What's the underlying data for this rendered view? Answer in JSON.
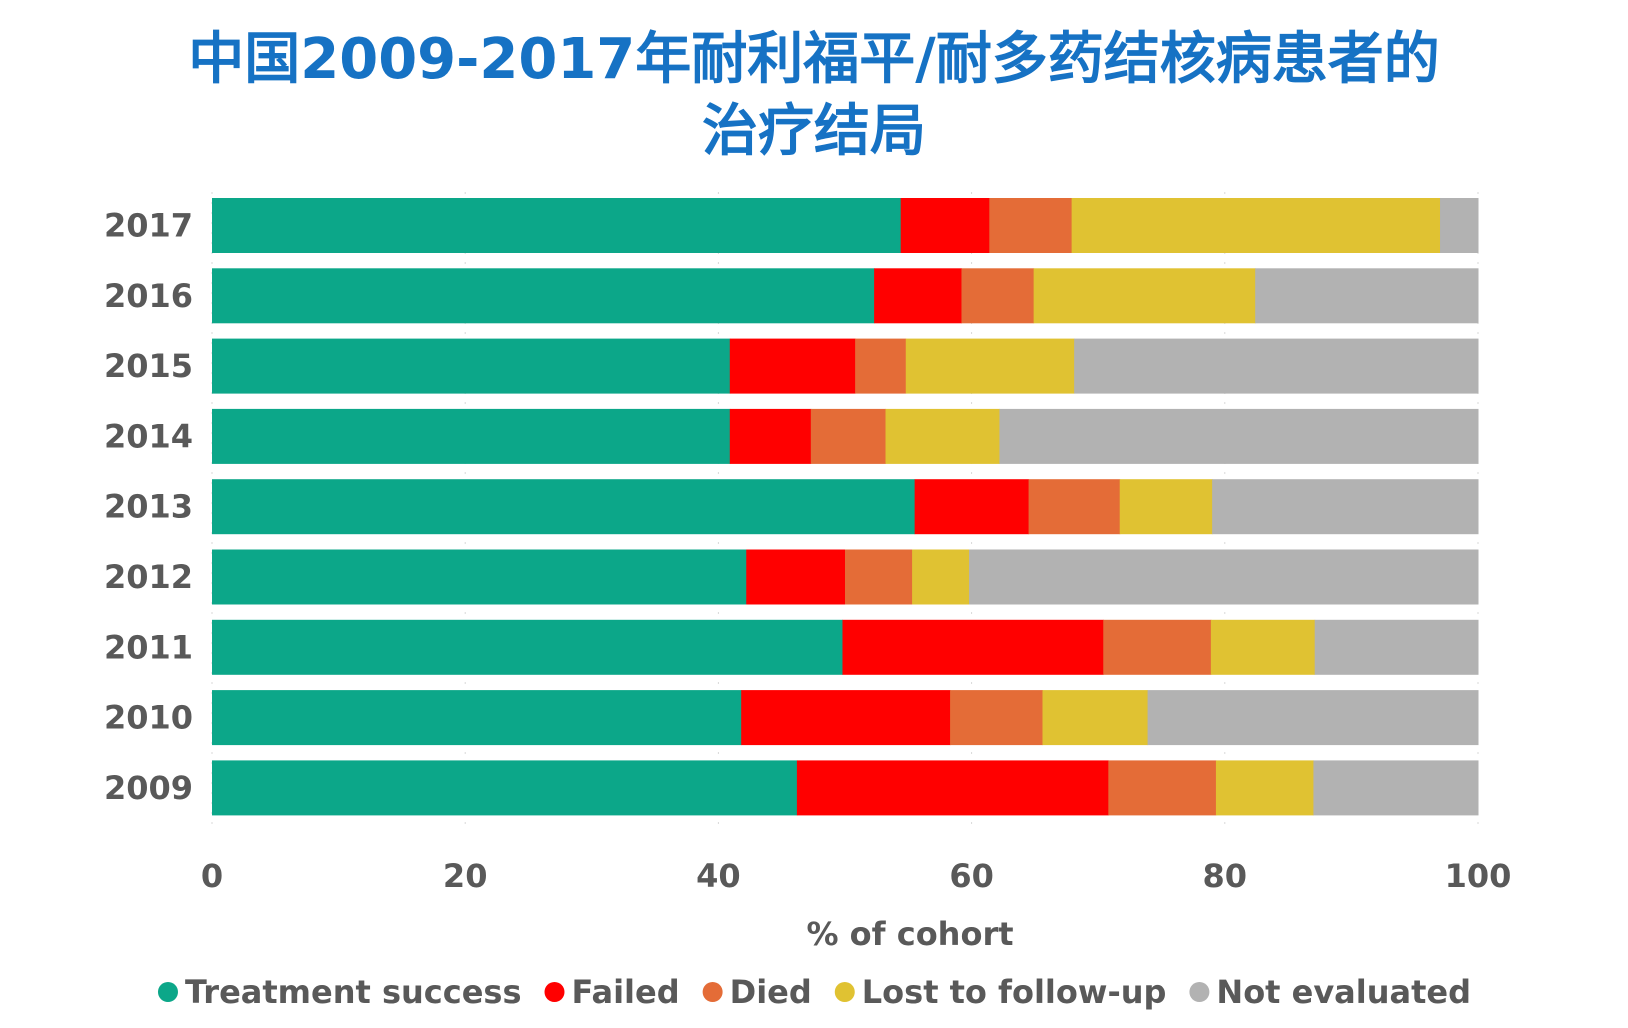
{
  "chart_data": {
    "type": "bar",
    "orientation": "horizontal",
    "stacked": true,
    "title_lines": [
      "中国2009-2017年耐利福平/耐多药结核病患者的",
      "治疗结局"
    ],
    "xlabel": "% of cohort",
    "ylabel": "",
    "xlim": [
      0,
      100
    ],
    "xticks": [
      "0",
      "20",
      "40",
      "60",
      "80",
      "100"
    ],
    "grid": "vertical dotted",
    "legend_position": "bottom",
    "categories": [
      "2017",
      "2016",
      "2015",
      "2014",
      "2013",
      "2012",
      "2011",
      "2010",
      "2009"
    ],
    "series": [
      {
        "name": "Treatment success",
        "color": "#0ca789",
        "values": [
          54.4,
          52.3,
          40.9,
          40.9,
          55.5,
          42.2,
          49.8,
          41.8,
          46.2
        ]
      },
      {
        "name": "Failed",
        "color": "#ff0000",
        "values": [
          7.0,
          6.9,
          9.9,
          6.4,
          9.0,
          7.8,
          20.6,
          16.5,
          24.6
        ]
      },
      {
        "name": "Died",
        "color": "#e46c37",
        "values": [
          6.5,
          5.7,
          4.0,
          5.9,
          7.2,
          5.3,
          8.5,
          7.3,
          8.5
        ]
      },
      {
        "name": "Lost to follow-up",
        "color": "#e0c232",
        "values": [
          29.1,
          17.5,
          13.3,
          9.0,
          7.3,
          4.5,
          8.2,
          8.3,
          7.7
        ]
      },
      {
        "name": "Not evaluated",
        "color": "#b2b2b2",
        "values": [
          3.0,
          17.6,
          31.9,
          37.8,
          21.0,
          40.2,
          12.9,
          26.1,
          13.0
        ]
      }
    ],
    "colors": {
      "title": "#1672c4",
      "text": "#595959"
    }
  }
}
